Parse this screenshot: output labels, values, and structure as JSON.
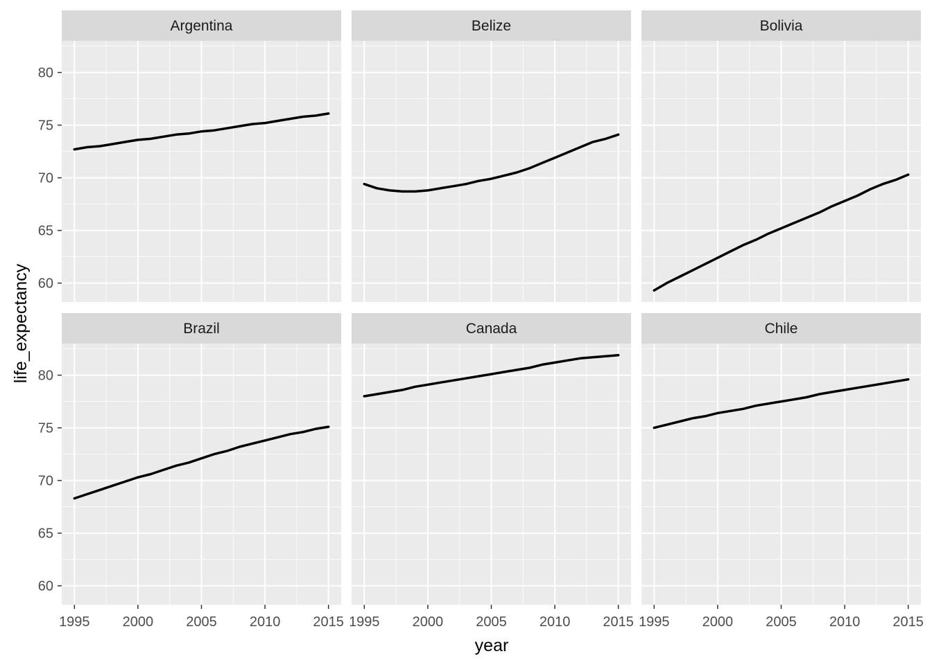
{
  "chart_data": {
    "type": "line",
    "facet_layout": "3 columns x 2 rows",
    "xlabel": "year",
    "ylabel": "life_expectancy",
    "xlim": [
      1994,
      2016
    ],
    "ylim": [
      58.2,
      83.0
    ],
    "x_ticks": [
      1995,
      2000,
      2005,
      2010,
      2015
    ],
    "y_ticks": [
      60,
      65,
      70,
      75,
      80
    ],
    "grid": true,
    "colors": {
      "panel": "#ebebeb",
      "strip": "#d9d9d9",
      "grid": "#ffffff",
      "line": "#000000"
    },
    "x": [
      1995,
      1996,
      1997,
      1998,
      1999,
      2000,
      2001,
      2002,
      2003,
      2004,
      2005,
      2006,
      2007,
      2008,
      2009,
      2010,
      2011,
      2012,
      2013,
      2014,
      2015
    ],
    "panels": [
      {
        "name": "Argentina",
        "values": [
          72.7,
          72.9,
          73.0,
          73.2,
          73.4,
          73.6,
          73.7,
          73.9,
          74.1,
          74.2,
          74.4,
          74.5,
          74.7,
          74.9,
          75.1,
          75.2,
          75.4,
          75.6,
          75.8,
          75.9,
          76.1
        ]
      },
      {
        "name": "Belize",
        "values": [
          69.4,
          69.0,
          68.8,
          68.7,
          68.7,
          68.8,
          69.0,
          69.2,
          69.4,
          69.7,
          69.9,
          70.2,
          70.5,
          70.9,
          71.4,
          71.9,
          72.4,
          72.9,
          73.4,
          73.7,
          74.1
        ]
      },
      {
        "name": "Bolivia",
        "values": [
          59.3,
          60.0,
          60.6,
          61.2,
          61.8,
          62.4,
          63.0,
          63.6,
          64.1,
          64.7,
          65.2,
          65.7,
          66.2,
          66.7,
          67.3,
          67.8,
          68.3,
          68.9,
          69.4,
          69.8,
          70.3
        ]
      },
      {
        "name": "Brazil",
        "values": [
          68.3,
          68.7,
          69.1,
          69.5,
          69.9,
          70.3,
          70.6,
          71.0,
          71.4,
          71.7,
          72.1,
          72.5,
          72.8,
          73.2,
          73.5,
          73.8,
          74.1,
          74.4,
          74.6,
          74.9,
          75.1
        ]
      },
      {
        "name": "Canada",
        "values": [
          78.0,
          78.2,
          78.4,
          78.6,
          78.9,
          79.1,
          79.3,
          79.5,
          79.7,
          79.9,
          80.1,
          80.3,
          80.5,
          80.7,
          81.0,
          81.2,
          81.4,
          81.6,
          81.7,
          81.8,
          81.9
        ]
      },
      {
        "name": "Chile",
        "values": [
          75.0,
          75.3,
          75.6,
          75.9,
          76.1,
          76.4,
          76.6,
          76.8,
          77.1,
          77.3,
          77.5,
          77.7,
          77.9,
          78.2,
          78.4,
          78.6,
          78.8,
          79.0,
          79.2,
          79.4,
          79.6
        ]
      }
    ]
  }
}
